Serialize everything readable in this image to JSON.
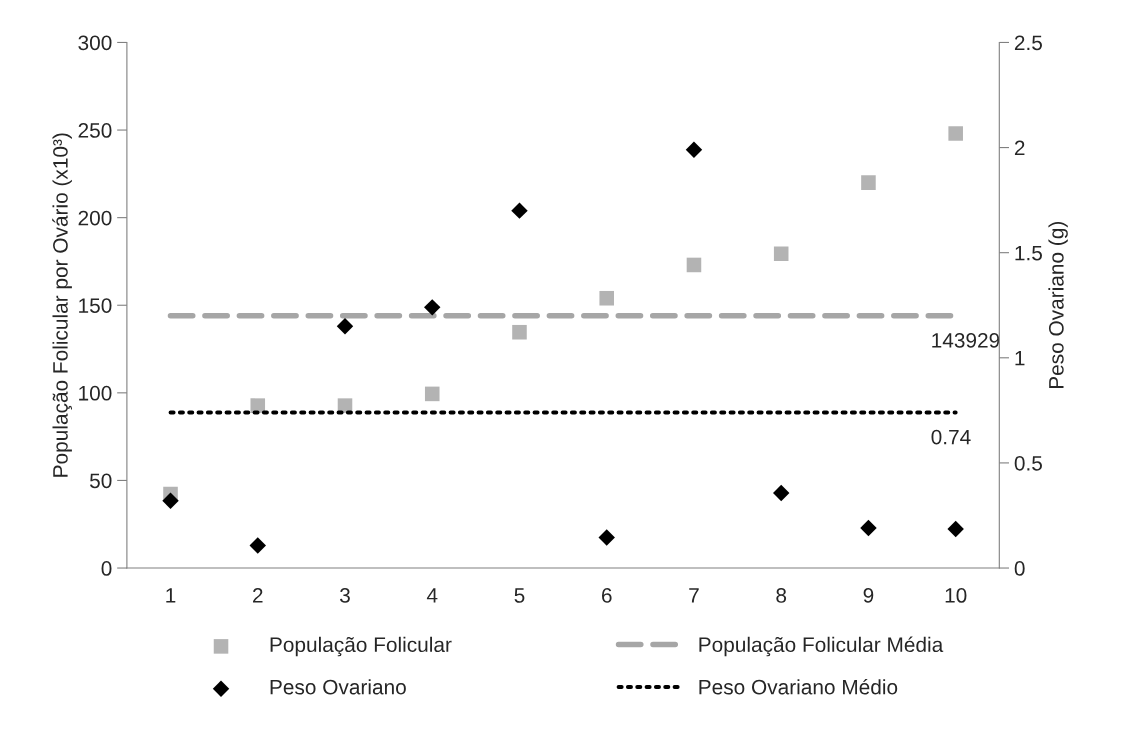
{
  "chart_data": {
    "type": "scatter",
    "categories": [
      "1",
      "2",
      "3",
      "4",
      "5",
      "6",
      "7",
      "8",
      "9",
      "10"
    ],
    "ylabel": "População Folicular por Ovário (x10³)",
    "y2label": "Peso Ovariano (g)",
    "ylim": [
      0,
      300
    ],
    "yticks": [
      0,
      50,
      100,
      150,
      200,
      250,
      300
    ],
    "y2lim": [
      0,
      2.5
    ],
    "y2ticks": [
      0,
      0.5,
      1,
      1.5,
      2,
      2.5
    ],
    "grid": false,
    "legend": "bottom",
    "annotations": [
      "143929",
      "0.74"
    ],
    "series": [
      {
        "name": "População Folicular",
        "marker": "square",
        "color": "#b3b3b3",
        "values": [
          42.3,
          92.7,
          92.7,
          99.4,
          134.6,
          154,
          173,
          179.4,
          220,
          248
        ]
      },
      {
        "name": "População Folicular Média",
        "type": "line",
        "line_style": "dashed",
        "marker": "none",
        "color": "#a6a6a6",
        "values": [
          144,
          144,
          144,
          144,
          144,
          144,
          144,
          144,
          144,
          144
        ]
      },
      {
        "name": "Peso Ovariano",
        "marker": "diamond",
        "color": "#000000",
        "axis": "y2",
        "values": [
          0.32,
          0.107,
          1.15,
          1.24,
          1.7,
          0.145,
          1.99,
          0.357,
          0.19,
          0.186
        ]
      },
      {
        "name": "Peso Ovariano Médio",
        "type": "line",
        "line_style": "dotted",
        "marker": "none",
        "color": "#000000",
        "axis": "y2",
        "values": [
          0.74,
          0.74,
          0.74,
          0.74,
          0.74,
          0.74,
          0.74,
          0.74,
          0.74,
          0.74
        ]
      }
    ]
  }
}
